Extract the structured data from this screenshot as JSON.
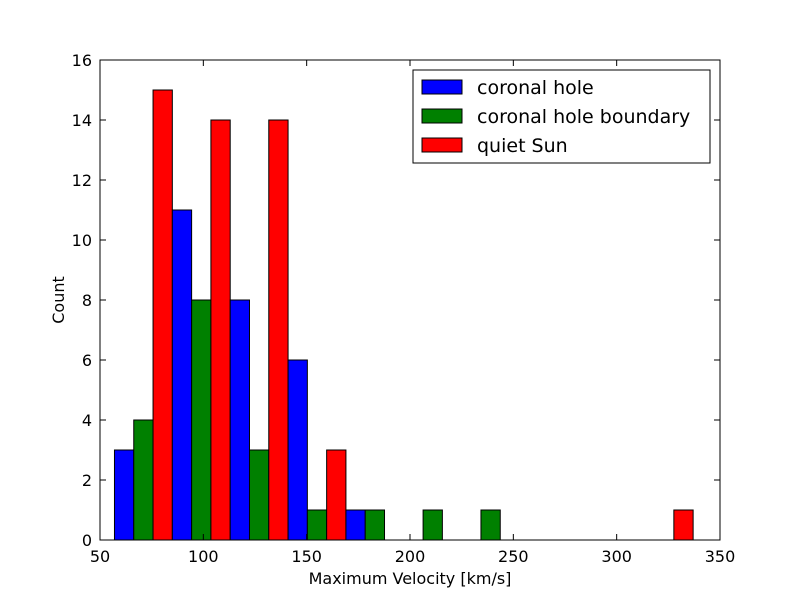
{
  "chart_data": {
    "type": "bar",
    "xlabel": "Maximum Velocity [km/s]",
    "ylabel": "Count",
    "xlim": [
      50,
      350
    ],
    "ylim": [
      0,
      16
    ],
    "xticks": [
      50,
      100,
      150,
      200,
      250,
      300,
      350
    ],
    "yticks": [
      0,
      2,
      4,
      6,
      8,
      10,
      12,
      14,
      16
    ],
    "xtick_labels": [
      "50",
      "100",
      "150",
      "200",
      "250",
      "300",
      "350"
    ],
    "ytick_labels": [
      "0",
      "2",
      "4",
      "6",
      "8",
      "10",
      "12",
      "14",
      "16"
    ],
    "bin_edges": [
      57,
      85,
      113,
      141,
      169,
      197,
      225,
      253,
      281,
      309,
      337
    ],
    "series": [
      {
        "name": "coronal hole",
        "color": "#0000ff",
        "values": [
          3,
          11,
          8,
          6,
          1,
          0,
          0,
          0,
          0,
          0
        ]
      },
      {
        "name": "coronal hole boundary",
        "color": "#008000",
        "values": [
          4,
          8,
          3,
          1,
          1,
          1,
          1,
          0,
          0,
          0
        ]
      },
      {
        "name": "quiet Sun",
        "color": "#ff0000",
        "values": [
          15,
          14,
          14,
          3,
          0,
          0,
          0,
          0,
          0,
          1
        ]
      }
    ],
    "legend_position": "top-right",
    "grid": false
  }
}
